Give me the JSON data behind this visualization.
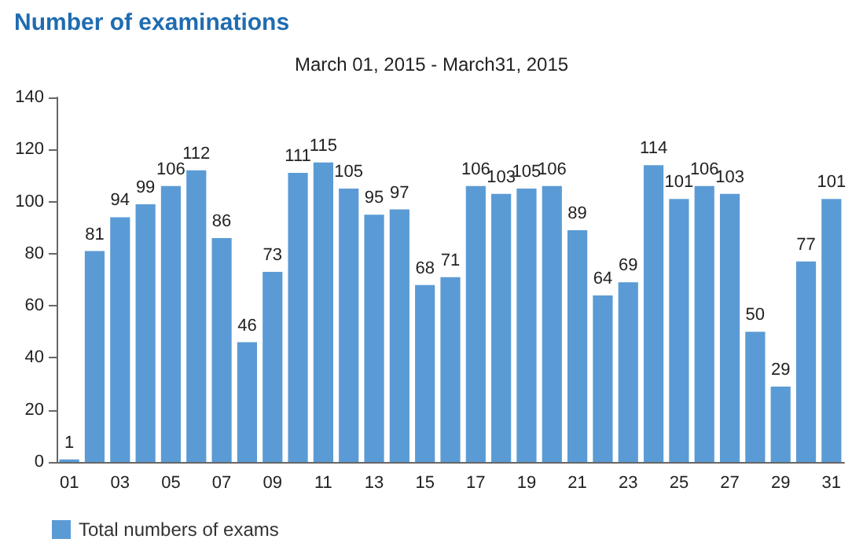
{
  "chart_data": {
    "type": "bar",
    "title": "Number of examinations",
    "subtitle": "March 01, 2015 - March31, 2015",
    "categories": [
      "01",
      null,
      "03",
      null,
      "05",
      null,
      "07",
      null,
      "09",
      null,
      "11",
      null,
      "13",
      null,
      "15",
      null,
      "17",
      null,
      "19",
      null,
      "21",
      null,
      "23",
      null,
      "25",
      null,
      "27",
      null,
      "29",
      null,
      "31"
    ],
    "series": [
      {
        "name": "Total numbers of exams",
        "color": "#5b9bd5",
        "values": [
          1,
          81,
          94,
          99,
          106,
          112,
          86,
          46,
          73,
          111,
          115,
          105,
          95,
          97,
          68,
          71,
          106,
          103,
          105,
          106,
          89,
          64,
          69,
          114,
          101,
          106,
          103,
          50,
          29,
          77,
          101
        ]
      }
    ],
    "ylim": [
      0,
      140
    ],
    "yticks": [
      0,
      20,
      40,
      60,
      80,
      100,
      120,
      140
    ],
    "grid": false,
    "legend": "bottom left",
    "data_labels": true
  }
}
